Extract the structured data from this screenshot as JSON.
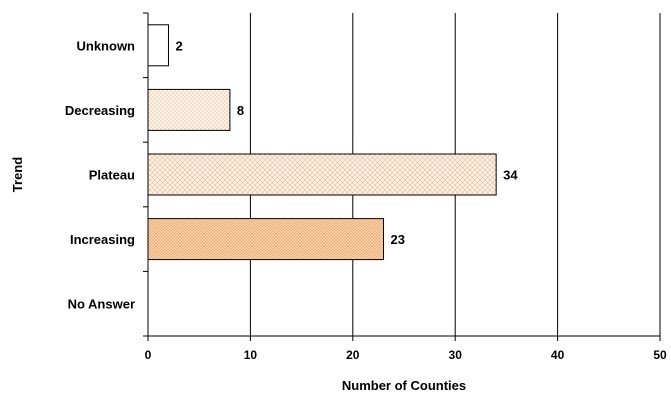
{
  "chart_data": {
    "type": "bar",
    "orientation": "horizontal",
    "categories": [
      "Unknown",
      "Decreasing",
      "Plateau",
      "Increasing",
      "No Answer"
    ],
    "values": [
      2,
      8,
      34,
      23,
      null
    ],
    "data_labels": [
      "2",
      "8",
      "34",
      "23",
      ""
    ],
    "xlabel": "Number of Counties",
    "ylabel": "Trend",
    "xlim": [
      0,
      50
    ],
    "xticks": [
      "0",
      "10",
      "20",
      "30",
      "40",
      "50"
    ],
    "grid": "vertical",
    "bar_styles": [
      {
        "fill": "#ffffff",
        "pattern": "none"
      },
      {
        "fill": "#fdf3ea",
        "pattern": "dots"
      },
      {
        "fill": "#fdf3ea",
        "pattern": "crosshatch"
      },
      {
        "fill": "#fbd3a8",
        "pattern": "fine-crosshatch"
      },
      {
        "fill": "#ffffff",
        "pattern": "none"
      }
    ]
  }
}
